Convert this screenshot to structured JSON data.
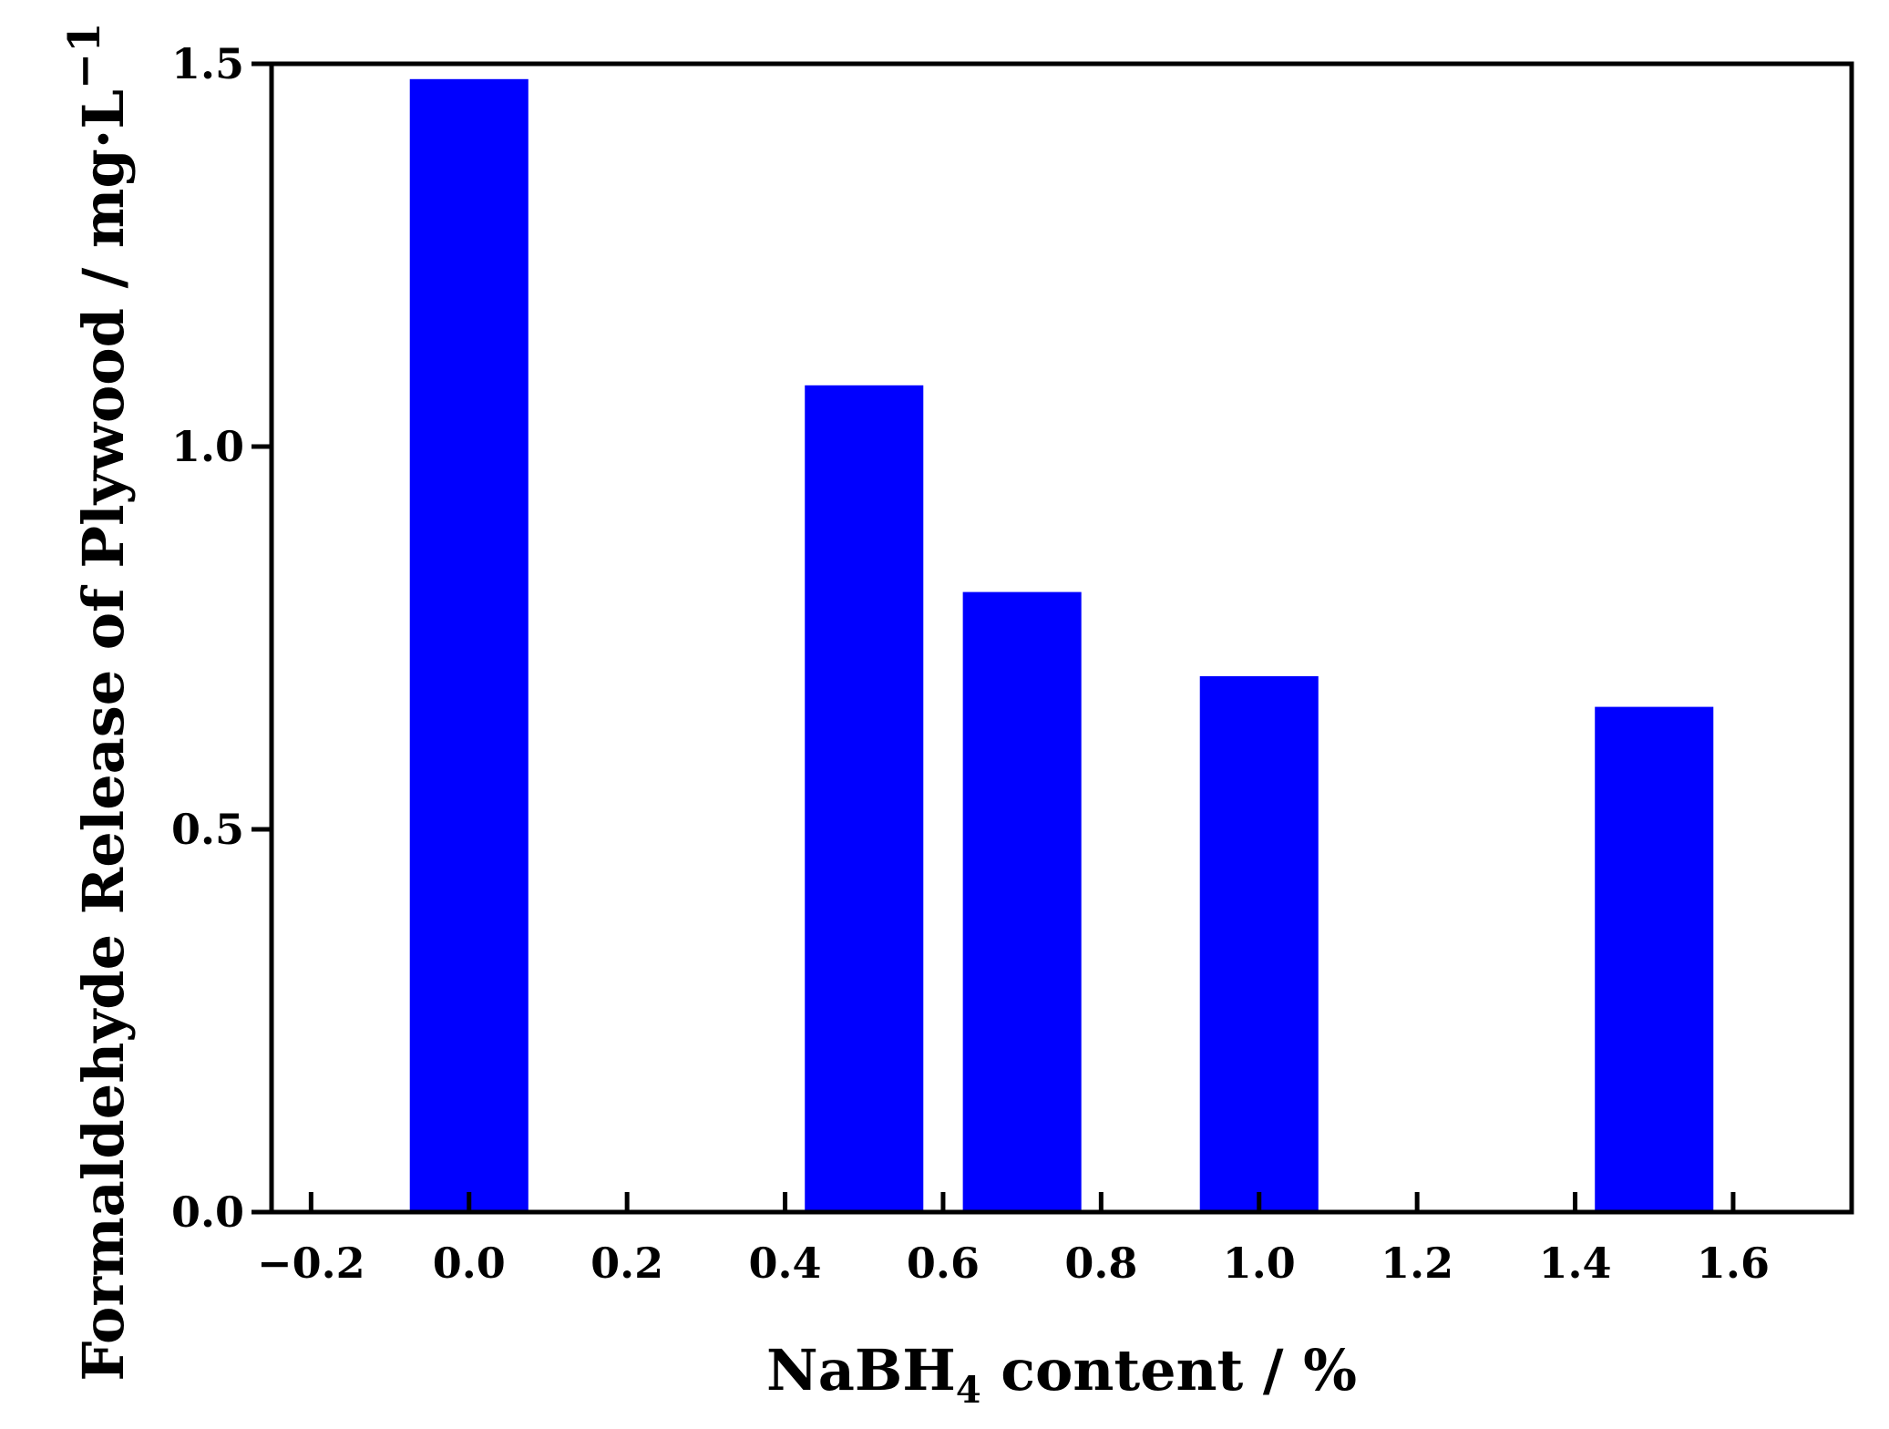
{
  "chart_data": {
    "type": "bar",
    "x": [
      0.0,
      0.5,
      0.7,
      1.0,
      1.5
    ],
    "values": [
      1.48,
      1.08,
      0.81,
      0.7,
      0.66
    ],
    "bar_width": 0.15,
    "bar_color": "#0000ff",
    "xlim": [
      -0.25,
      1.75
    ],
    "ylim": [
      0.0,
      1.5
    ],
    "xticks": [
      -0.2,
      0.0,
      0.2,
      0.4,
      0.6,
      0.8,
      1.0,
      1.2,
      1.4,
      1.6
    ],
    "xtick_labels": [
      "−0.2",
      "0.0",
      "0.2",
      "0.4",
      "0.6",
      "0.8",
      "1.0",
      "1.2",
      "1.4",
      "1.6"
    ],
    "yticks": [
      0.0,
      0.5,
      1.0,
      1.5
    ],
    "ytick_labels": [
      "0.0",
      "0.5",
      "1.0",
      "1.5"
    ],
    "xlabel": {
      "before_sub": "NaBH",
      "sub": "4",
      "after_sub": " content / %"
    },
    "ylabel": {
      "main": "Formaldehyde Release of Plywood / mg·L",
      "sup": "−1"
    },
    "grid": false
  }
}
